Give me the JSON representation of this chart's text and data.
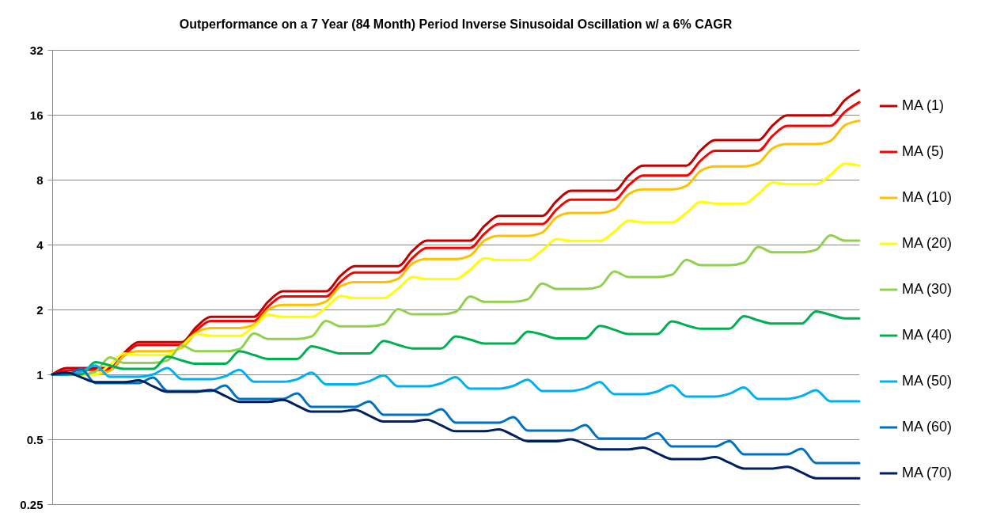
{
  "chart_data": {
    "type": "line",
    "title": "Outperformance on a 7 Year (84 Month) Period Inverse Sinusoidal Oscillation w/ a 6% CAGR",
    "categories": [
      null,
      null,
      null,
      null,
      null,
      null,
      null,
      null,
      null,
      null,
      null,
      null,
      null,
      null,
      null,
      null,
      null,
      null,
      null,
      null,
      null,
      null,
      null,
      null,
      null,
      null,
      null,
      null,
      null,
      null,
      null,
      null,
      null,
      null,
      null,
      null,
      null,
      null,
      null,
      null,
      null,
      null,
      null,
      null,
      null,
      null,
      null,
      null,
      null,
      null,
      null,
      null,
      null,
      null,
      null,
      null,
      null
    ],
    "series": [
      {
        "name": "MA (1)",
        "color": "#c00000",
        "values": [
          1,
          1.07,
          1.07,
          1.07,
          1.07,
          1.26,
          1.41,
          1.41,
          1.41,
          1.41,
          1.66,
          1.85,
          1.85,
          1.85,
          1.85,
          2.18,
          2.43,
          2.43,
          2.43,
          2.43,
          2.86,
          3.18,
          3.18,
          3.18,
          3.18,
          3.74,
          4.17,
          4.17,
          4.17,
          4.17,
          4.88,
          5.43,
          5.43,
          5.43,
          5.43,
          6.38,
          7.1,
          7.1,
          7.1,
          7.1,
          8.35,
          9.3,
          9.3,
          9.3,
          9.3,
          10.95,
          12.2,
          12.2,
          12.2,
          12.2,
          14.3,
          15.9,
          15.9,
          15.9,
          15.9,
          18.7,
          20.8
        ]
      },
      {
        "name": "MA (5)",
        "color": "#ff0000",
        "values": [
          1,
          1.04,
          1.05,
          1.05,
          1.05,
          1.23,
          1.37,
          1.37,
          1.37,
          1.37,
          1.6,
          1.77,
          1.77,
          1.77,
          1.77,
          2.07,
          2.3,
          2.3,
          2.3,
          2.3,
          2.68,
          2.97,
          2.97,
          2.97,
          2.97,
          3.47,
          3.86,
          3.86,
          3.86,
          3.86,
          4.5,
          4.98,
          4.98,
          4.98,
          4.98,
          5.82,
          6.46,
          6.46,
          6.46,
          6.46,
          7.54,
          8.37,
          8.37,
          8.37,
          8.37,
          9.81,
          10.9,
          10.9,
          10.9,
          10.9,
          12.8,
          14.2,
          14.2,
          14.2,
          14.2,
          16.5,
          18.3
        ]
      },
      {
        "name": "MA (10)",
        "color": "#ffc000",
        "values": [
          1,
          1,
          1,
          1,
          1.04,
          1.22,
          1.28,
          1.28,
          1.28,
          1.33,
          1.56,
          1.64,
          1.64,
          1.64,
          1.7,
          2,
          2.1,
          2.1,
          2.1,
          2.18,
          2.56,
          2.68,
          2.68,
          2.68,
          2.78,
          3.27,
          3.43,
          3.43,
          3.43,
          3.56,
          4.18,
          4.39,
          4.39,
          4.39,
          4.55,
          5.35,
          5.61,
          5.61,
          5.61,
          5.82,
          6.86,
          7.21,
          7.21,
          7.21,
          7.48,
          8.8,
          9.22,
          9.22,
          9.22,
          9.56,
          11.2,
          11.7,
          11.7,
          11.7,
          12.1,
          14.3,
          15
        ]
      },
      {
        "name": "MA (20)",
        "color": "#ffff00",
        "values": [
          1,
          1,
          1,
          1,
          1.11,
          1.25,
          1.23,
          1.23,
          1.23,
          1.36,
          1.54,
          1.51,
          1.51,
          1.51,
          1.67,
          1.89,
          1.85,
          1.85,
          1.85,
          2.04,
          2.31,
          2.26,
          2.26,
          2.26,
          2.5,
          2.83,
          2.77,
          2.77,
          2.77,
          3.06,
          3.46,
          3.39,
          3.39,
          3.39,
          3.76,
          4.24,
          4.16,
          4.16,
          4.16,
          4.59,
          5.17,
          5.07,
          5.07,
          5.07,
          5.61,
          6.32,
          6.2,
          6.2,
          6.2,
          6.87,
          7.77,
          7.62,
          7.62,
          7.62,
          8.42,
          9.49,
          9.3
        ]
      },
      {
        "name": "MA (30)",
        "color": "#92d050",
        "values": [
          1,
          1,
          1,
          1.03,
          1.2,
          1.13,
          1.13,
          1.13,
          1.16,
          1.36,
          1.28,
          1.28,
          1.28,
          1.31,
          1.55,
          1.46,
          1.46,
          1.46,
          1.5,
          1.77,
          1.67,
          1.67,
          1.67,
          1.71,
          2.01,
          1.9,
          1.9,
          1.9,
          1.95,
          2.3,
          2.17,
          2.17,
          2.17,
          2.23,
          2.64,
          2.49,
          2.49,
          2.49,
          2.56,
          3,
          2.83,
          2.83,
          2.83,
          2.9,
          3.4,
          3.21,
          3.21,
          3.21,
          3.3,
          3.9,
          3.68,
          3.68,
          3.68,
          3.78,
          4.42,
          4.17,
          4.17
        ]
      },
      {
        "name": "MA (40)",
        "color": "#00b050",
        "values": [
          1,
          1,
          1,
          1.14,
          1.1,
          1.06,
          1.06,
          1.06,
          1.21,
          1.16,
          1.12,
          1.12,
          1.12,
          1.28,
          1.23,
          1.18,
          1.18,
          1.18,
          1.35,
          1.3,
          1.25,
          1.25,
          1.25,
          1.43,
          1.37,
          1.32,
          1.32,
          1.32,
          1.5,
          1.45,
          1.39,
          1.39,
          1.39,
          1.58,
          1.53,
          1.47,
          1.47,
          1.47,
          1.68,
          1.61,
          1.54,
          1.54,
          1.54,
          1.76,
          1.69,
          1.63,
          1.63,
          1.63,
          1.86,
          1.78,
          1.72,
          1.72,
          1.72,
          1.96,
          1.89,
          1.82,
          1.82
        ]
      },
      {
        "name": "MA (50)",
        "color": "#00b0f0",
        "values": [
          1,
          1,
          1.03,
          1.1,
          0.975,
          0.975,
          0.975,
          1,
          1.07,
          0.95,
          0.95,
          0.95,
          0.98,
          1.05,
          0.925,
          0.925,
          0.925,
          0.95,
          1.02,
          0.9,
          0.9,
          0.9,
          0.93,
          0.99,
          0.88,
          0.88,
          0.88,
          0.91,
          0.97,
          0.859,
          0.859,
          0.859,
          0.885,
          0.945,
          0.838,
          0.838,
          0.838,
          0.863,
          0.92,
          0.81,
          0.81,
          0.81,
          0.834,
          0.89,
          0.79,
          0.79,
          0.79,
          0.814,
          0.87,
          0.77,
          0.77,
          0.77,
          0.793,
          0.845,
          0.75,
          0.75,
          0.75
        ]
      },
      {
        "name": "MA (60)",
        "color": "#0070c0",
        "values": [
          1,
          1,
          1.06,
          0.912,
          0.912,
          0.912,
          0.912,
          0.967,
          0.838,
          0.838,
          0.838,
          0.838,
          0.888,
          0.77,
          0.77,
          0.77,
          0.77,
          0.816,
          0.707,
          0.707,
          0.707,
          0.707,
          0.749,
          0.65,
          0.65,
          0.65,
          0.65,
          0.689,
          0.597,
          0.597,
          0.597,
          0.597,
          0.633,
          0.549,
          0.549,
          0.549,
          0.549,
          0.582,
          0.504,
          0.504,
          0.504,
          0.504,
          0.534,
          0.463,
          0.463,
          0.463,
          0.463,
          0.491,
          0.426,
          0.426,
          0.426,
          0.426,
          0.452,
          0.388,
          0.388,
          0.388,
          0.388
        ]
      },
      {
        "name": "MA (70)",
        "color": "#002060",
        "values": [
          1,
          1.02,
          0.97,
          0.92,
          0.92,
          0.92,
          0.938,
          0.88,
          0.83,
          0.83,
          0.83,
          0.847,
          0.795,
          0.746,
          0.746,
          0.746,
          0.761,
          0.716,
          0.672,
          0.672,
          0.672,
          0.685,
          0.644,
          0.605,
          0.605,
          0.605,
          0.617,
          0.58,
          0.545,
          0.545,
          0.545,
          0.556,
          0.522,
          0.49,
          0.49,
          0.49,
          0.5,
          0.474,
          0.449,
          0.449,
          0.449,
          0.458,
          0.43,
          0.405,
          0.405,
          0.405,
          0.413,
          0.389,
          0.366,
          0.366,
          0.366,
          0.373,
          0.351,
          0.33,
          0.33,
          0.33,
          0.33
        ]
      }
    ],
    "ylim": [
      0.25,
      32
    ],
    "yticks": [
      0.25,
      0.5,
      1,
      2,
      4,
      8,
      16,
      32
    ],
    "log": true,
    "grid": "y",
    "legend": "right",
    "tick_labels": "y"
  }
}
